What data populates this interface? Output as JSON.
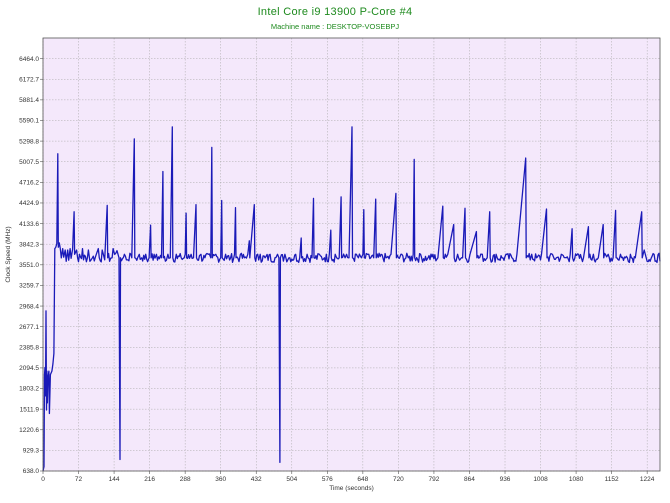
{
  "chart_data": {
    "type": "line",
    "title": "Intel Core i9 13900 P-Core #4",
    "subtitle": "Machine name : DESKTOP-VOSEBPJ",
    "xlabel": "Time (seconds)",
    "ylabel": "Clock Speed (MHz)",
    "xlim": [
      0,
      1250
    ],
    "ylim": [
      638.0,
      6755.5
    ],
    "x_ticks": [
      "0",
      "72",
      "144",
      "216",
      "288",
      "360",
      "432",
      "504",
      "576",
      "648",
      "720",
      "792",
      "864",
      "936",
      "1008",
      "1080",
      "1152",
      "1224"
    ],
    "y_ticks": [
      "6464.0",
      "6172.7",
      "5881.4",
      "5590.1",
      "5298.8",
      "5007.5",
      "4716.2",
      "4424.9",
      "4133.6",
      "3842.3",
      "3551.0",
      "3259.7",
      "2968.4",
      "2677.1",
      "2385.8",
      "2094.5",
      "1803.2",
      "1511.9",
      "1220.6",
      "929.3",
      "638.0"
    ],
    "grid": true,
    "colors": {
      "line": "#1a1ab8",
      "plot_bg": "#f4e8fb",
      "grid": "#aaaaaa",
      "title": "#1e8a1e"
    },
    "series": [
      {
        "baseline": 3650,
        "points": [
          [
            0,
            638
          ],
          [
            2,
            700
          ],
          [
            3,
            2000
          ],
          [
            4,
            2100
          ],
          [
            5,
            1700
          ],
          [
            6,
            2900
          ],
          [
            7,
            1500
          ],
          [
            8,
            2050
          ],
          [
            9,
            1600
          ],
          [
            10,
            1950
          ],
          [
            12,
            2050
          ],
          [
            13,
            1450
          ],
          [
            15,
            2000
          ],
          [
            18,
            2050
          ],
          [
            20,
            2150
          ],
          [
            22,
            2300
          ],
          [
            24,
            3780
          ],
          [
            26,
            3800
          ],
          [
            28,
            3850
          ],
          [
            30,
            5120
          ],
          [
            31,
            3800
          ],
          [
            33,
            3860
          ],
          [
            35,
            3780
          ],
          [
            40,
            3780
          ],
          [
            45,
            3760
          ],
          [
            50,
            3760
          ],
          [
            55,
            3780
          ],
          [
            60,
            3770
          ],
          [
            63,
            4300
          ],
          [
            64,
            3700
          ],
          [
            68,
            3760
          ],
          [
            80,
            3780
          ],
          [
            92,
            3760
          ],
          [
            95,
            3600
          ],
          [
            100,
            3650
          ],
          [
            108,
            3700
          ],
          [
            112,
            3780
          ],
          [
            120,
            3760
          ],
          [
            125,
            3620
          ],
          [
            130,
            4390
          ],
          [
            131,
            3650
          ],
          [
            140,
            3650
          ],
          [
            142,
            3780
          ],
          [
            145,
            3700
          ],
          [
            150,
            3750
          ],
          [
            154,
            3650
          ],
          [
            156,
            800
          ],
          [
            157,
            3650
          ],
          [
            165,
            3700
          ],
          [
            172,
            3620
          ],
          [
            178,
            3700
          ],
          [
            180,
            3650
          ],
          [
            185,
            5330
          ],
          [
            186,
            3650
          ],
          [
            195,
            3700
          ],
          [
            200,
            3650
          ],
          [
            208,
            3700
          ],
          [
            215,
            3650
          ],
          [
            218,
            4110
          ],
          [
            219,
            3650
          ],
          [
            230,
            3700
          ],
          [
            240,
            3650
          ],
          [
            243,
            4870
          ],
          [
            244,
            3650
          ],
          [
            253,
            3700
          ],
          [
            258,
            3650
          ],
          [
            262,
            5500
          ],
          [
            263,
            3650
          ],
          [
            270,
            3700
          ],
          [
            280,
            3650
          ],
          [
            288,
            3700
          ],
          [
            290,
            4280
          ],
          [
            291,
            3650
          ],
          [
            300,
            3700
          ],
          [
            305,
            3650
          ],
          [
            310,
            4400
          ],
          [
            311,
            3650
          ],
          [
            320,
            3700
          ],
          [
            328,
            3650
          ],
          [
            335,
            3700
          ],
          [
            340,
            3650
          ],
          [
            342,
            5210
          ],
          [
            343,
            3650
          ],
          [
            350,
            3700
          ],
          [
            360,
            3650
          ],
          [
            362,
            4460
          ],
          [
            363,
            3650
          ],
          [
            370,
            3700
          ],
          [
            380,
            3650
          ],
          [
            388,
            3700
          ],
          [
            390,
            4360
          ],
          [
            391,
            3650
          ],
          [
            400,
            3700
          ],
          [
            408,
            3650
          ],
          [
            415,
            3700
          ],
          [
            418,
            3890
          ],
          [
            419,
            3650
          ],
          [
            428,
            4400
          ],
          [
            429,
            3650
          ],
          [
            440,
            3700
          ],
          [
            450,
            3650
          ],
          [
            460,
            3700
          ],
          [
            470,
            3650
          ],
          [
            475,
            3700
          ],
          [
            478,
            3650
          ],
          [
            480,
            760
          ],
          [
            481,
            3650
          ],
          [
            490,
            3700
          ],
          [
            500,
            3650
          ],
          [
            512,
            3700
          ],
          [
            520,
            3650
          ],
          [
            523,
            3930
          ],
          [
            524,
            3650
          ],
          [
            535,
            3700
          ],
          [
            545,
            3650
          ],
          [
            548,
            4490
          ],
          [
            549,
            3650
          ],
          [
            560,
            3700
          ],
          [
            570,
            3650
          ],
          [
            580,
            3700
          ],
          [
            583,
            4040
          ],
          [
            584,
            3650
          ],
          [
            592,
            3700
          ],
          [
            600,
            3650
          ],
          [
            604,
            4510
          ],
          [
            605,
            3650
          ],
          [
            612,
            3650
          ],
          [
            615,
            3700
          ],
          [
            620,
            3650
          ],
          [
            626,
            5500
          ],
          [
            627,
            3650
          ],
          [
            635,
            3700
          ],
          [
            645,
            3650
          ],
          [
            648,
            3700
          ],
          [
            650,
            4330
          ],
          [
            651,
            3650
          ],
          [
            660,
            3700
          ],
          [
            670,
            3650
          ],
          [
            674,
            4480
          ],
          [
            675,
            3650
          ],
          [
            685,
            3700
          ],
          [
            695,
            3650
          ],
          [
            705,
            3700
          ],
          [
            715,
            4560
          ],
          [
            716,
            3650
          ],
          [
            725,
            3700
          ],
          [
            740,
            3650
          ],
          [
            750,
            3700
          ],
          [
            752,
            5040
          ],
          [
            753,
            3650
          ],
          [
            765,
            3700
          ],
          [
            780,
            3650
          ],
          [
            790,
            3700
          ],
          [
            800,
            3650
          ],
          [
            810,
            4380
          ],
          [
            811,
            3650
          ],
          [
            820,
            3700
          ],
          [
            832,
            4120
          ],
          [
            833,
            3650
          ],
          [
            840,
            3700
          ],
          [
            850,
            3650
          ],
          [
            855,
            4350
          ],
          [
            856,
            3650
          ],
          [
            865,
            3700
          ],
          [
            878,
            4020
          ],
          [
            879,
            3650
          ],
          [
            890,
            3700
          ],
          [
            900,
            3650
          ],
          [
            905,
            4300
          ],
          [
            906,
            3650
          ],
          [
            918,
            3700
          ],
          [
            930,
            3650
          ],
          [
            940,
            3700
          ],
          [
            950,
            3650
          ],
          [
            960,
            3700
          ],
          [
            978,
            5060
          ],
          [
            979,
            3650
          ],
          [
            990,
            3700
          ],
          [
            1000,
            3650
          ],
          [
            1010,
            3700
          ],
          [
            1020,
            4340
          ],
          [
            1021,
            3650
          ],
          [
            1032,
            3700
          ],
          [
            1040,
            3650
          ],
          [
            1050,
            3700
          ],
          [
            1060,
            3650
          ],
          [
            1068,
            3700
          ],
          [
            1072,
            4060
          ],
          [
            1073,
            3650
          ],
          [
            1085,
            3700
          ],
          [
            1095,
            3650
          ],
          [
            1105,
            4090
          ],
          [
            1106,
            3650
          ],
          [
            1115,
            3700
          ],
          [
            1125,
            3650
          ],
          [
            1135,
            4120
          ],
          [
            1136,
            3650
          ],
          [
            1145,
            3700
          ],
          [
            1155,
            3650
          ],
          [
            1160,
            4320
          ],
          [
            1161,
            3650
          ],
          [
            1170,
            3700
          ],
          [
            1180,
            3650
          ],
          [
            1190,
            3700
          ],
          [
            1200,
            3650
          ],
          [
            1213,
            4300
          ],
          [
            1214,
            3650
          ],
          [
            1218,
            3760
          ],
          [
            1222,
            3650
          ],
          [
            1230,
            3600
          ],
          [
            1240,
            3600
          ],
          [
            1250,
            3600
          ]
        ]
      }
    ]
  }
}
